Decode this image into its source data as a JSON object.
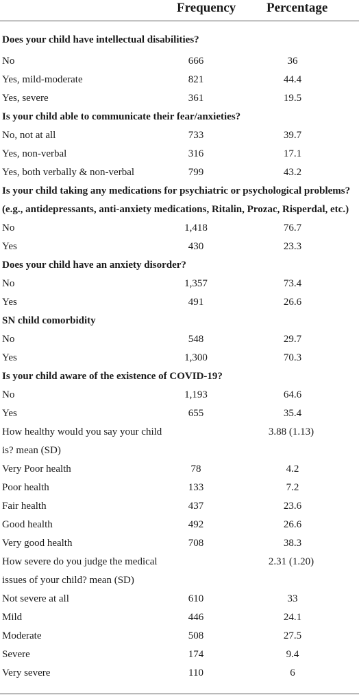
{
  "header": {
    "frequency": "Frequency",
    "percentage": "Percentage"
  },
  "sections": [
    {
      "title": "Does your child have intellectual disabilities?",
      "rows": [
        [
          "No",
          "666",
          "36"
        ],
        [
          "Yes, mild-moderate",
          "821",
          "44.4"
        ],
        [
          "Yes, severe",
          "361",
          "19.5"
        ]
      ]
    },
    {
      "title": "Is your child able to communicate their fear/anxieties?",
      "rows": [
        [
          "No, not at all",
          "733",
          "39.7"
        ],
        [
          "Yes, non-verbal",
          "316",
          "17.1"
        ],
        [
          "Yes, both verbally & non-verbal",
          "799",
          "43.2"
        ]
      ]
    },
    {
      "title": "Is your child taking any medications for psychiatric or psychological problems?",
      "title2": "(e.g., antidepressants, anti-anxiety medications, Ritalin, Prozac, Risperdal, etc.)",
      "rows": [
        [
          "No",
          "1,418",
          "76.7"
        ],
        [
          "Yes",
          "430",
          "23.3"
        ]
      ]
    },
    {
      "title": "Does your child have an anxiety disorder?",
      "rows": [
        [
          "No",
          "1,357",
          "73.4"
        ],
        [
          "Yes",
          "491",
          "26.6"
        ]
      ]
    },
    {
      "title": "SN child comorbidity",
      "rows": [
        [
          "No",
          "548",
          "29.7"
        ],
        [
          "Yes",
          "1,300",
          "70.3"
        ]
      ]
    },
    {
      "title": "Is your child aware of the existence of COVID-19?",
      "rows": [
        [
          "No",
          "1,193",
          "64.6"
        ],
        [
          "Yes",
          "655",
          "35.4"
        ]
      ]
    }
  ],
  "health": {
    "label1": "How healthy would you say your child",
    "label2": "is? mean (SD)",
    "value": "3.88 (1.13)",
    "rows": [
      [
        "Very Poor health",
        "78",
        "4.2"
      ],
      [
        "Poor health",
        "133",
        "7.2"
      ],
      [
        "Fair health",
        "437",
        "23.6"
      ],
      [
        "Good health",
        "492",
        "26.6"
      ],
      [
        "Very good health",
        "708",
        "38.3"
      ]
    ]
  },
  "severity": {
    "label1": "How severe do you judge the medical",
    "label2": "issues of your child? mean (SD)",
    "value": "2.31 (1.20)",
    "rows": [
      [
        "Not severe at all",
        "610",
        "33"
      ],
      [
        "Mild",
        "446",
        "24.1"
      ],
      [
        "Moderate",
        "508",
        "27.5"
      ],
      [
        "Severe",
        "174",
        "9.4"
      ],
      [
        "Very severe",
        "110",
        "6"
      ]
    ]
  }
}
